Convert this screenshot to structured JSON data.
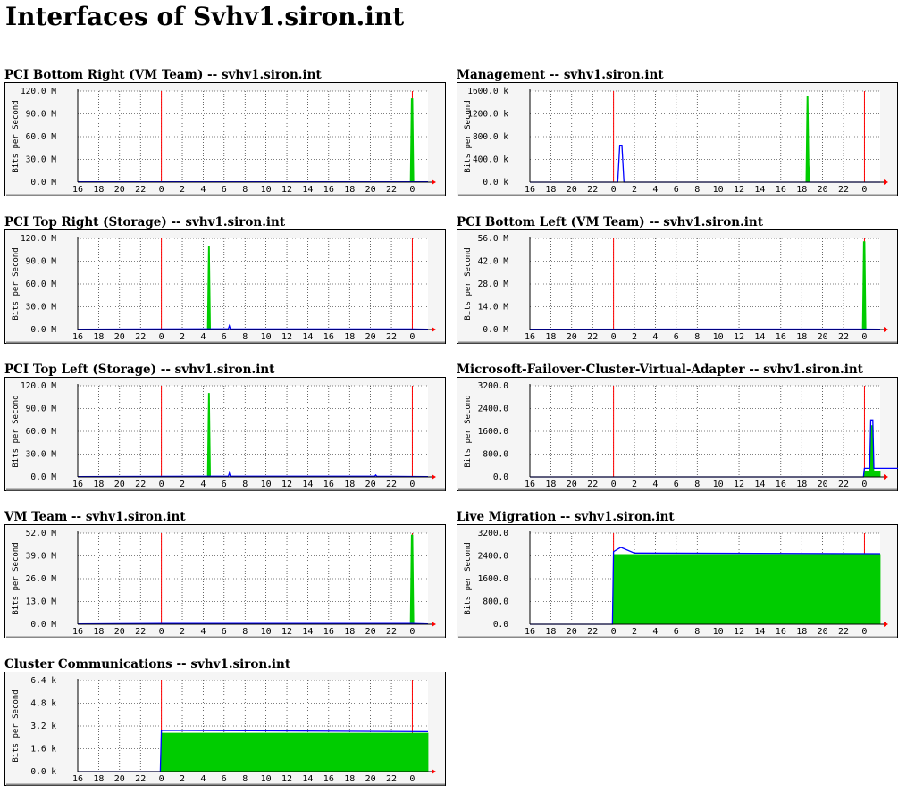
{
  "page": {
    "title": "Interfaces of Svhv1.siron.int"
  },
  "colors": {
    "in": "#00cc00",
    "out": "#0000ff",
    "marker": "#ff0000",
    "frame_bg": "#f5f5f5",
    "plot_bg": "#ffffff"
  },
  "shared": {
    "ylabel": "Bits per Second",
    "x_ticks": [
      "16",
      "18",
      "20",
      "22",
      "0",
      "2",
      "4",
      "6",
      "8",
      "10",
      "12",
      "14",
      "16",
      "18",
      "20",
      "22",
      "0"
    ],
    "x_range_hours": [
      -32,
      1.5
    ],
    "day_markers_hours": [
      -24,
      0
    ]
  },
  "chart_data": [
    {
      "type": "area",
      "title": "PCI Bottom Right (VM Team) -- svhv1.siron.int",
      "ylim": [
        0,
        120000000
      ],
      "y_ticks": [
        "0.0 M",
        "30.0 M",
        "60.0 M",
        "90.0 M",
        "120.0 M"
      ],
      "series": [
        {
          "name": "in",
          "points": [
            [
              -32,
              0
            ],
            [
              -0.2,
              0
            ],
            [
              -0.1,
              110000000
            ],
            [
              0.05,
              110000000
            ],
            [
              0.15,
              0
            ],
            [
              1.5,
              0
            ]
          ]
        },
        {
          "name": "out",
          "points": [
            [
              -32,
              300000
            ],
            [
              -24,
              400000
            ],
            [
              0,
              400000
            ],
            [
              1.5,
              300000
            ]
          ]
        }
      ]
    },
    {
      "type": "area",
      "title": "Management -- svhv1.siron.int",
      "ylim": [
        0,
        1600000
      ],
      "y_ticks": [
        "0.0 k",
        "400.0 k",
        "800.0 k",
        "1200.0 k",
        "1600.0 k"
      ],
      "series": [
        {
          "name": "in",
          "points": [
            [
              -32,
              0
            ],
            [
              -5.6,
              0
            ],
            [
              -5.5,
              1500000
            ],
            [
              -5.4,
              1500000
            ],
            [
              -5.3,
              300000
            ],
            [
              -5.2,
              0
            ],
            [
              1.5,
              0
            ]
          ]
        },
        {
          "name": "out",
          "points": [
            [
              -32,
              0
            ],
            [
              -23.6,
              0
            ],
            [
              -23.4,
              650000
            ],
            [
              -23.2,
              650000
            ],
            [
              -23.0,
              0
            ],
            [
              1.5,
              0
            ]
          ]
        }
      ]
    },
    {
      "type": "area",
      "title": "PCI Top Right (Storage) -- svhv1.siron.int",
      "ylim": [
        0,
        120000000
      ],
      "y_ticks": [
        "0.0 M",
        "30.0 M",
        "60.0 M",
        "90.0 M",
        "120.0 M"
      ],
      "series": [
        {
          "name": "in",
          "points": [
            [
              -32,
              0
            ],
            [
              -19.6,
              0
            ],
            [
              -19.5,
              110000000
            ],
            [
              -19.4,
              110000000
            ],
            [
              -19.3,
              0
            ],
            [
              1.5,
              0
            ]
          ]
        },
        {
          "name": "out",
          "points": [
            [
              -32,
              500000
            ],
            [
              -19.5,
              800000
            ],
            [
              -17.6,
              800000
            ],
            [
              -17.5,
              5000000
            ],
            [
              -17.4,
              800000
            ],
            [
              0,
              700000
            ],
            [
              1.5,
              500000
            ]
          ]
        }
      ]
    },
    {
      "type": "area",
      "title": "PCI Bottom Left (VM Team) -- svhv1.siron.int",
      "ylim": [
        0,
        56000000
      ],
      "y_ticks": [
        "0.0 M",
        "14.0 M",
        "28.0 M",
        "42.0 M",
        "56.0 M"
      ],
      "series": [
        {
          "name": "in",
          "points": [
            [
              -32,
              0
            ],
            [
              -0.2,
              0
            ],
            [
              -0.1,
              54000000
            ],
            [
              0.05,
              54000000
            ],
            [
              0.15,
              0
            ],
            [
              1.5,
              0
            ]
          ]
        },
        {
          "name": "out",
          "points": [
            [
              -32,
              200000
            ],
            [
              0,
              300000
            ],
            [
              1.5,
              200000
            ]
          ]
        }
      ]
    },
    {
      "type": "area",
      "title": "PCI Top Left (Storage) -- svhv1.siron.int",
      "ylim": [
        0,
        120000000
      ],
      "y_ticks": [
        "0.0 M",
        "30.0 M",
        "60.0 M",
        "90.0 M",
        "120.0 M"
      ],
      "series": [
        {
          "name": "in",
          "points": [
            [
              -32,
              0
            ],
            [
              -19.6,
              0
            ],
            [
              -19.5,
              110000000
            ],
            [
              -19.4,
              110000000
            ],
            [
              -19.3,
              0
            ],
            [
              1.5,
              0
            ]
          ]
        },
        {
          "name": "out",
          "points": [
            [
              -32,
              500000
            ],
            [
              -19.5,
              800000
            ],
            [
              -17.6,
              800000
            ],
            [
              -17.5,
              5000000
            ],
            [
              -17.4,
              800000
            ],
            [
              -3.6,
              800000
            ],
            [
              -3.5,
              2500000
            ],
            [
              -3.4,
              800000
            ],
            [
              1.5,
              500000
            ]
          ]
        }
      ]
    },
    {
      "type": "area",
      "title": "Microsoft-Failover-Cluster-Virtual-Adapter -- svhv1.siron.int",
      "ylim": [
        0,
        3200
      ],
      "y_ticks": [
        "0.0",
        "800.0",
        "1600.0",
        "2400.0",
        "3200.0"
      ],
      "series": [
        {
          "name": "in",
          "points": [
            [
              -32,
              0
            ],
            [
              -0.1,
              0
            ],
            [
              0,
              200
            ],
            [
              0.5,
              200
            ],
            [
              0.6,
              1800
            ],
            [
              0.8,
              1800
            ],
            [
              0.9,
              200
            ],
            [
              4.3,
              200
            ],
            [
              4.4,
              2000
            ],
            [
              4.6,
              2000
            ],
            [
              4.7,
              200
            ],
            [
              1.5,
              200
            ]
          ]
        },
        {
          "name": "out",
          "points": [
            [
              -32,
              0
            ],
            [
              -0.1,
              0
            ],
            [
              0,
              300
            ],
            [
              0.5,
              300
            ],
            [
              0.6,
              2000
            ],
            [
              0.8,
              2000
            ],
            [
              0.9,
              300
            ],
            [
              4.3,
              300
            ],
            [
              4.4,
              2900
            ],
            [
              4.6,
              2900
            ],
            [
              4.7,
              300
            ],
            [
              1.5,
              300
            ]
          ]
        }
      ]
    },
    {
      "type": "area",
      "title": "VM Team -- svhv1.siron.int",
      "ylim": [
        0,
        52000000
      ],
      "y_ticks": [
        "0.0 M",
        "13.0 M",
        "26.0 M",
        "39.0 M",
        "52.0 M"
      ],
      "series": [
        {
          "name": "in",
          "points": [
            [
              -32,
              0
            ],
            [
              -0.2,
              0
            ],
            [
              -0.1,
              51000000
            ],
            [
              0.05,
              51000000
            ],
            [
              0.15,
              0
            ],
            [
              1.5,
              0
            ]
          ]
        },
        {
          "name": "out",
          "points": [
            [
              -32,
              200000
            ],
            [
              -24,
              400000
            ],
            [
              0,
              400000
            ],
            [
              1.5,
              200000
            ]
          ]
        }
      ]
    },
    {
      "type": "area",
      "title": "Live Migration -- svhv1.siron.int",
      "ylim": [
        0,
        3200
      ],
      "y_ticks": [
        "0.0",
        "800.0",
        "1600.0",
        "2400.0",
        "3200.0"
      ],
      "series": [
        {
          "name": "in",
          "points": [
            [
              -32,
              0
            ],
            [
              -24.1,
              0
            ],
            [
              -24,
              2450
            ],
            [
              1.5,
              2450
            ]
          ]
        },
        {
          "name": "out",
          "points": [
            [
              -32,
              0
            ],
            [
              -24.1,
              0
            ],
            [
              -24,
              2550
            ],
            [
              -23.3,
              2700
            ],
            [
              -22,
              2500
            ],
            [
              1.5,
              2480
            ]
          ]
        }
      ]
    },
    {
      "type": "area",
      "title": "Cluster Communications -- svhv1.siron.int",
      "ylim": [
        0,
        6400
      ],
      "y_ticks": [
        "0.0 k",
        "1.6 k",
        "3.2 k",
        "4.8 k",
        "6.4 k"
      ],
      "series": [
        {
          "name": "in",
          "points": [
            [
              -32,
              0
            ],
            [
              -24.1,
              0
            ],
            [
              -24,
              2700
            ],
            [
              1.5,
              2700
            ]
          ]
        },
        {
          "name": "out",
          "points": [
            [
              -32,
              0
            ],
            [
              -24.1,
              0
            ],
            [
              -24,
              2900
            ],
            [
              1.5,
              2800
            ]
          ]
        }
      ]
    }
  ]
}
